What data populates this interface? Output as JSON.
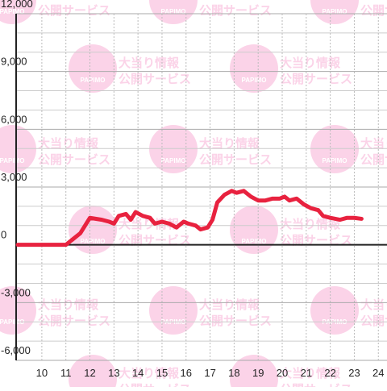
{
  "chart_data": {
    "type": "line",
    "x": [
      9,
      11,
      11.3,
      11.6,
      12,
      12.5,
      12.8,
      13,
      13.2,
      13.5,
      13.7,
      13.9,
      14.2,
      14.5,
      14.7,
      15,
      15.3,
      15.6,
      15.9,
      16.1,
      16.4,
      16.6,
      16.9,
      17.1,
      17.3,
      17.6,
      17.9,
      18.1,
      18.4,
      18.7,
      19,
      19.3,
      19.6,
      19.9,
      20.1,
      20.3,
      20.6,
      20.9,
      21.2,
      21.5,
      21.7,
      22,
      22.4,
      22.7,
      23,
      23.3
    ],
    "series": [
      {
        "color": "#e8223f",
        "values": [
          0,
          0,
          300,
          600,
          1400,
          1300,
          1200,
          1100,
          1500,
          1600,
          1300,
          1700,
          1500,
          1400,
          1100,
          1200,
          1100,
          900,
          1200,
          1100,
          1000,
          800,
          900,
          1300,
          2200,
          2600,
          2800,
          2700,
          2800,
          2500,
          2300,
          2300,
          2400,
          2400,
          2500,
          2300,
          2400,
          2100,
          1900,
          1800,
          1500,
          1400,
          1300,
          1400,
          1400,
          1350
        ]
      }
    ],
    "xlim": [
      8.93,
      24.36
    ],
    "xticks": [
      10,
      11,
      12,
      13,
      14,
      15,
      16,
      17,
      18,
      19,
      20,
      21,
      22,
      23,
      24
    ],
    "ylim": [
      -6000,
      12000
    ],
    "yticks": [
      {
        "value": -6000,
        "label": "-6,000"
      },
      {
        "value": -3000,
        "label": "-3,000"
      },
      0,
      {
        "value": 3000,
        "label": "3,000"
      },
      {
        "value": 6000,
        "label": "6,000"
      },
      {
        "value": 9000,
        "label": "9,000"
      },
      {
        "value": 12000,
        "label": "12,000"
      }
    ],
    "y_minor_ticks": [
      -5000,
      -4000,
      -2000,
      -1000,
      1000,
      2000,
      4000,
      5000,
      7000,
      8000,
      10000,
      11000
    ],
    "grid": true
  },
  "watermark": {
    "brand": "PAPIMO",
    "line1": "大当り情報",
    "line2": "公開サービス"
  }
}
